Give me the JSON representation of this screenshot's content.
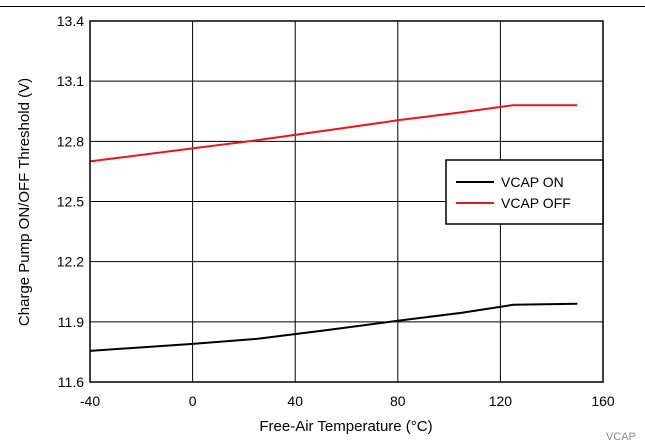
{
  "chart_data": {
    "type": "line",
    "xlabel": "Free-Air Temperature (°C)",
    "ylabel": "Charge Pump ON/OFF Threshold (V)",
    "xlim": [
      -40,
      160
    ],
    "ylim": [
      11.6,
      13.4
    ],
    "x_ticks": [
      "-40",
      "0",
      "40",
      "80",
      "120",
      "160"
    ],
    "x_tick_values": [
      -40,
      0,
      40,
      80,
      120,
      160
    ],
    "y_ticks": [
      "11.6",
      "11.9",
      "12.2",
      "12.5",
      "12.8",
      "13.1",
      "13.4"
    ],
    "y_tick_values": [
      11.6,
      11.9,
      12.2,
      12.5,
      12.8,
      13.1,
      13.4
    ],
    "grid": true,
    "legend_position": "right",
    "series": [
      {
        "name": "VCAP ON",
        "color": "#000000",
        "x": [
          -40,
          0,
          25,
          50,
          80,
          105,
          125,
          150
        ],
        "y": [
          11.755,
          11.79,
          11.815,
          11.855,
          11.905,
          11.945,
          11.985,
          11.99
        ]
      },
      {
        "name": "VCAP OFF",
        "color": "#e8161b",
        "x": [
          -40,
          0,
          25,
          50,
          80,
          105,
          125,
          150
        ],
        "y": [
          12.7,
          12.765,
          12.805,
          12.85,
          12.905,
          12.945,
          12.98,
          12.98
        ]
      }
    ],
    "footnote": "VCAP"
  }
}
